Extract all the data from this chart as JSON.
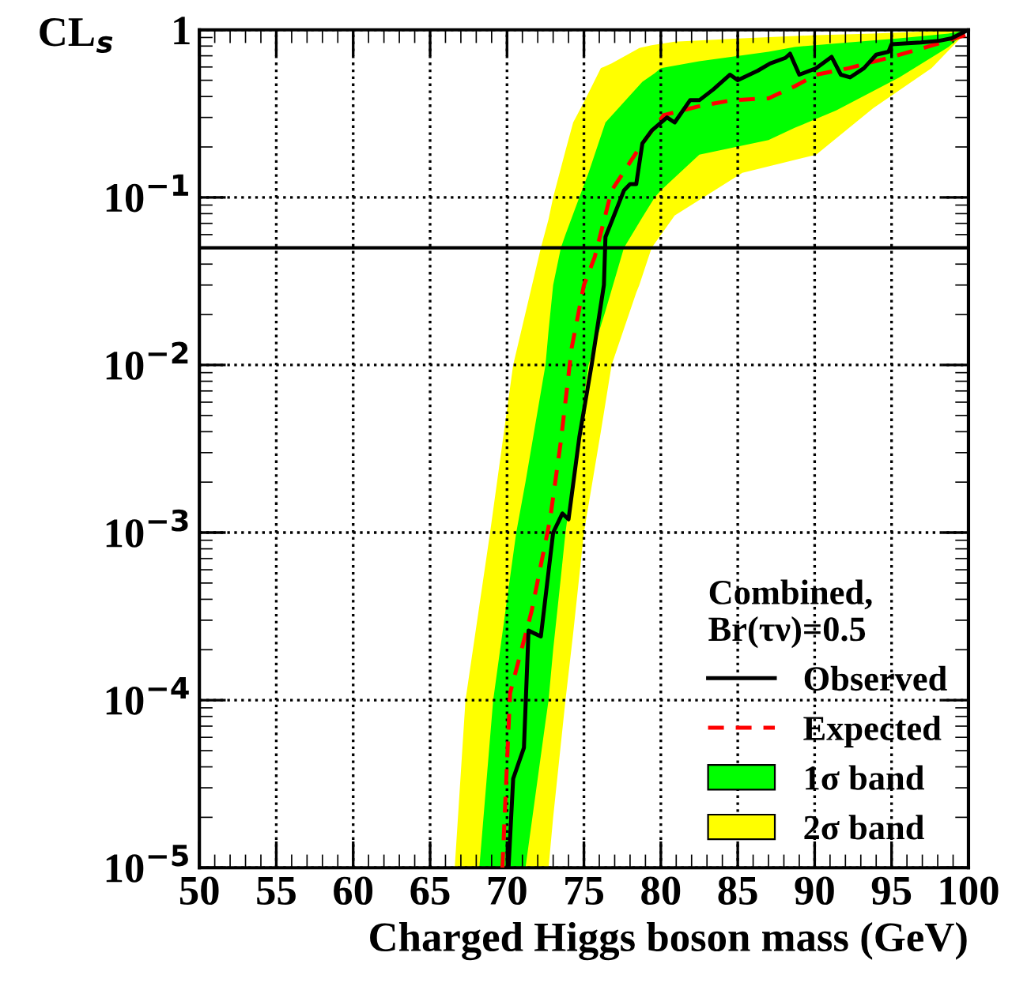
{
  "chart_data": {
    "type": "line",
    "xlabel": "Charged Higgs boson mass (GeV)",
    "ylabel": "CL$_{s}$",
    "legend_title": "Combined,\nBr(τν)=0.5",
    "log": "y",
    "grid": true,
    "legend": "bottom right",
    "xlim": [
      50,
      100
    ],
    "xticks": [
      50,
      55,
      60,
      65,
      70,
      75,
      80,
      85,
      90,
      95,
      100
    ],
    "ylim": [
      1e-05,
      1
    ],
    "yticks": [
      {
        "value": 1e-05,
        "label": "10$^{−5}$"
      },
      {
        "value": 0.0001,
        "label": "10$^{−4}$"
      },
      {
        "value": 0.001,
        "label": "10$^{−3}$"
      },
      {
        "value": 0.01,
        "label": "10$^{−2}$"
      },
      {
        "value": 0.1,
        "label": "10$^{−1}$"
      },
      1
    ],
    "ref_lines": [
      {
        "axis": "y",
        "value": 0.05,
        "color": "#000000",
        "line_style": "solid"
      }
    ],
    "series": [
      {
        "name": "2σ band",
        "color": "#ffff00",
        "x": [
          66.6,
          67.3,
          68.9,
          70.4,
          72.2,
          72.7,
          73.0,
          73.8,
          74.3,
          75,
          76.1,
          76.8,
          78.4,
          78.6,
          79.4,
          80.9,
          85.3,
          90.1,
          93.8,
          97.6,
          100
        ],
        "values": [
          null,
          null,
          null,
          null,
          null,
          null,
          null,
          null,
          null,
          null,
          null,
          null,
          null,
          null,
          null,
          null,
          null,
          null,
          null,
          null,
          null
        ],
        "lower": [
          1e-05,
          1e-05,
          1e-05,
          1e-05,
          1e-05,
          1e-05,
          2e-05,
          0.0001,
          0.00025,
          0.001,
          0.004,
          0.01,
          0.027,
          0.03,
          0.05,
          0.078,
          0.14,
          0.18,
          0.34,
          0.59,
          1
        ],
        "upper": [
          1e-05,
          0.0001,
          0.001,
          0.01,
          0.05,
          0.074,
          0.1,
          0.19,
          0.28,
          0.37,
          0.59,
          0.63,
          0.76,
          0.78,
          0.81,
          0.85,
          0.89,
          0.93,
          0.95,
          0.98,
          1
        ]
      },
      {
        "name": "1σ band",
        "color": "#00ff00",
        "x": [
          68.2,
          69.1,
          70.6,
          71.2,
          72.5,
          72.7,
          73.0,
          73.5,
          73.8,
          74.7,
          75.3,
          76.4,
          77.6,
          78.8,
          79.6,
          80,
          82.5,
          87,
          88.7,
          91.4,
          95.5,
          98.7,
          100
        ],
        "values": [
          null,
          null,
          null,
          null,
          null,
          null,
          null,
          null,
          null,
          null,
          null,
          null,
          null,
          null,
          null,
          null,
          null,
          null,
          null,
          null,
          null,
          null,
          null
        ],
        "lower": [
          1e-05,
          1e-05,
          1e-05,
          1e-05,
          7.4e-05,
          0.0001,
          0.0002,
          0.00054,
          0.001,
          0.004,
          0.01,
          0.021,
          0.05,
          0.076,
          0.1,
          0.11,
          0.18,
          0.22,
          0.26,
          0.33,
          0.52,
          0.79,
          1
        ],
        "upper": [
          1e-05,
          0.0001,
          0.001,
          0.002,
          0.01,
          0.016,
          0.03,
          0.05,
          0.06,
          0.1,
          0.14,
          0.28,
          0.37,
          0.49,
          0.55,
          0.59,
          0.65,
          0.74,
          0.79,
          0.83,
          0.89,
          0.95,
          1
        ]
      },
      {
        "name": "Expected",
        "type": "line",
        "color": "#ff0000",
        "line_style": "dashed",
        "x": [
          69.7,
          70.2,
          71.6,
          72.8,
          73.5,
          74.2,
          75.0,
          75.7,
          76.8,
          78.8,
          80.2,
          82.5,
          84.6,
          87.0,
          88.7,
          90.1,
          92.2,
          94.8,
          97.3,
          99.8
        ],
        "values": [
          1e-05,
          0.00011,
          0.00034,
          0.0012,
          0.0035,
          0.0126,
          0.03,
          0.044,
          0.11,
          0.21,
          0.31,
          0.35,
          0.38,
          0.39,
          0.46,
          0.54,
          0.59,
          0.68,
          0.79,
          0.93
        ]
      },
      {
        "name": "Observed",
        "type": "line",
        "color": "#000000",
        "line_style": "solid",
        "x": [
          70.1,
          70.4,
          71.1,
          71.4,
          72.2,
          73.0,
          73.6,
          74.0,
          74.7,
          75.5,
          76.3,
          76.4,
          77.6,
          78.0,
          78.4,
          78.8,
          79.4,
          80.4,
          80.9,
          81.9,
          82.5,
          83.4,
          84.5,
          85.0,
          86.3,
          87.1,
          88.1,
          88.4,
          89.0,
          90.1,
          91.1,
          91.7,
          92.3,
          93.2,
          94.0,
          94.8,
          95.0,
          96.9,
          98.1,
          98.9,
          99.8
        ],
        "values": [
          1e-05,
          3.4e-05,
          5.2e-05,
          0.00026,
          0.00024,
          0.001,
          0.0013,
          0.0012,
          0.0037,
          0.01,
          0.03,
          0.058,
          0.11,
          0.12,
          0.12,
          0.21,
          0.25,
          0.3,
          0.28,
          0.38,
          0.38,
          0.44,
          0.54,
          0.5,
          0.57,
          0.63,
          0.68,
          0.72,
          0.54,
          0.59,
          0.69,
          0.54,
          0.52,
          0.59,
          0.71,
          0.74,
          0.82,
          0.84,
          0.86,
          0.89,
          0.98
        ]
      }
    ]
  }
}
